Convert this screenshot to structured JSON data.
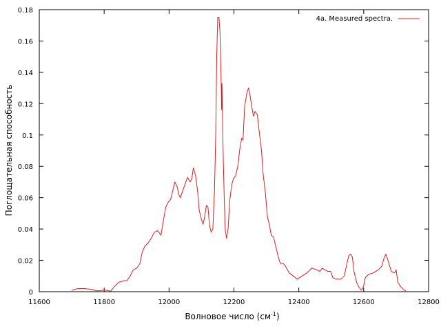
{
  "chart_data": {
    "type": "line",
    "xlabel": "Волновое число (см",
    "xlabel_sup": "-1",
    "xlabel_close": ")",
    "ylabel": "Поглощательная способность",
    "xlim": [
      11600,
      12800
    ],
    "ylim": [
      0,
      0.18
    ],
    "xticks": [
      "11600",
      "11800",
      "12000",
      "12200",
      "12400",
      "12600",
      "12800"
    ],
    "yticks": [
      "0",
      "0.02",
      "0.04",
      "0.06",
      "0.08",
      "0.1",
      "0.12",
      "0.14",
      "0.16",
      "0.18"
    ],
    "grid": false,
    "legend_position": "top-right",
    "series": [
      {
        "name": "4a. Measured spectra.",
        "color": "#e41a1c",
        "points": [
          [
            11700,
            0.001
          ],
          [
            11720,
            0.002
          ],
          [
            11740,
            0.002
          ],
          [
            11760,
            0.0015
          ],
          [
            11780,
            0.0005
          ],
          [
            11800,
            0.001
          ],
          [
            11810,
            0.0008
          ],
          [
            11820,
            0.0003
          ],
          [
            11830,
            0.003
          ],
          [
            11845,
            0.006
          ],
          [
            11860,
            0.007
          ],
          [
            11870,
            0.007
          ],
          [
            11880,
            0.01
          ],
          [
            11890,
            0.014
          ],
          [
            11900,
            0.015
          ],
          [
            11910,
            0.018
          ],
          [
            11917,
            0.025
          ],
          [
            11925,
            0.029
          ],
          [
            11935,
            0.031
          ],
          [
            11945,
            0.034
          ],
          [
            11955,
            0.038
          ],
          [
            11965,
            0.039
          ],
          [
            11975,
            0.036
          ],
          [
            11982,
            0.045
          ],
          [
            11990,
            0.054
          ],
          [
            11997,
            0.057
          ],
          [
            12005,
            0.059
          ],
          [
            12012,
            0.065
          ],
          [
            12018,
            0.07
          ],
          [
            12025,
            0.067
          ],
          [
            12030,
            0.062
          ],
          [
            12035,
            0.06
          ],
          [
            12043,
            0.065
          ],
          [
            12050,
            0.069
          ],
          [
            12057,
            0.073
          ],
          [
            12065,
            0.07
          ],
          [
            12070,
            0.072
          ],
          [
            12075,
            0.079
          ],
          [
            12082,
            0.074
          ],
          [
            12088,
            0.064
          ],
          [
            12093,
            0.052
          ],
          [
            12100,
            0.046
          ],
          [
            12105,
            0.043
          ],
          [
            12110,
            0.048
          ],
          [
            12115,
            0.055
          ],
          [
            12120,
            0.054
          ],
          [
            12125,
            0.042
          ],
          [
            12130,
            0.038
          ],
          [
            12135,
            0.04
          ],
          [
            12140,
            0.065
          ],
          [
            12144,
            0.1
          ],
          [
            12147,
            0.15
          ],
          [
            12150,
            0.175
          ],
          [
            12154,
            0.175
          ],
          [
            12157,
            0.165
          ],
          [
            12160,
            0.14
          ],
          [
            12162,
            0.116
          ],
          [
            12163,
            0.133
          ],
          [
            12164,
            0.12
          ],
          [
            12167,
            0.085
          ],
          [
            12170,
            0.06
          ],
          [
            12173,
            0.04
          ],
          [
            12177,
            0.034
          ],
          [
            12182,
            0.04
          ],
          [
            12187,
            0.058
          ],
          [
            12193,
            0.068
          ],
          [
            12198,
            0.072
          ],
          [
            12205,
            0.074
          ],
          [
            12212,
            0.08
          ],
          [
            12218,
            0.091
          ],
          [
            12224,
            0.098
          ],
          [
            12228,
            0.097
          ],
          [
            12233,
            0.118
          ],
          [
            12240,
            0.127
          ],
          [
            12245,
            0.13
          ],
          [
            12250,
            0.125
          ],
          [
            12255,
            0.118
          ],
          [
            12260,
            0.112
          ],
          [
            12265,
            0.115
          ],
          [
            12272,
            0.113
          ],
          [
            12278,
            0.102
          ],
          [
            12285,
            0.09
          ],
          [
            12290,
            0.075
          ],
          [
            12297,
            0.063
          ],
          [
            12303,
            0.048
          ],
          [
            12310,
            0.042
          ],
          [
            12315,
            0.036
          ],
          [
            12322,
            0.035
          ],
          [
            12330,
            0.028
          ],
          [
            12337,
            0.022
          ],
          [
            12343,
            0.018
          ],
          [
            12352,
            0.018
          ],
          [
            12360,
            0.016
          ],
          [
            12370,
            0.012
          ],
          [
            12383,
            0.01
          ],
          [
            12395,
            0.008
          ],
          [
            12410,
            0.01
          ],
          [
            12425,
            0.012
          ],
          [
            12440,
            0.015
          ],
          [
            12455,
            0.014
          ],
          [
            12465,
            0.013
          ],
          [
            12472,
            0.015
          ],
          [
            12480,
            0.014
          ],
          [
            12490,
            0.013
          ],
          [
            12498,
            0.013
          ],
          [
            12505,
            0.009
          ],
          [
            12515,
            0.008
          ],
          [
            12530,
            0.008
          ],
          [
            12540,
            0.01
          ],
          [
            12548,
            0.018
          ],
          [
            12554,
            0.023
          ],
          [
            12560,
            0.024
          ],
          [
            12565,
            0.022
          ],
          [
            12570,
            0.013
          ],
          [
            12578,
            0.006
          ],
          [
            12585,
            0.003
          ],
          [
            12592,
            0.001
          ],
          [
            12597,
            0.002
          ],
          [
            12600,
            0.004
          ],
          [
            12605,
            0.009
          ],
          [
            12615,
            0.011
          ],
          [
            12630,
            0.012
          ],
          [
            12645,
            0.014
          ],
          [
            12655,
            0.016
          ],
          [
            12662,
            0.021
          ],
          [
            12668,
            0.024
          ],
          [
            12675,
            0.02
          ],
          [
            12685,
            0.013
          ],
          [
            12695,
            0.012
          ],
          [
            12700,
            0.014
          ],
          [
            12705,
            0.006
          ],
          [
            12715,
            0.003
          ],
          [
            12725,
            0.001
          ],
          [
            12730,
            0.0005
          ]
        ]
      }
    ]
  }
}
